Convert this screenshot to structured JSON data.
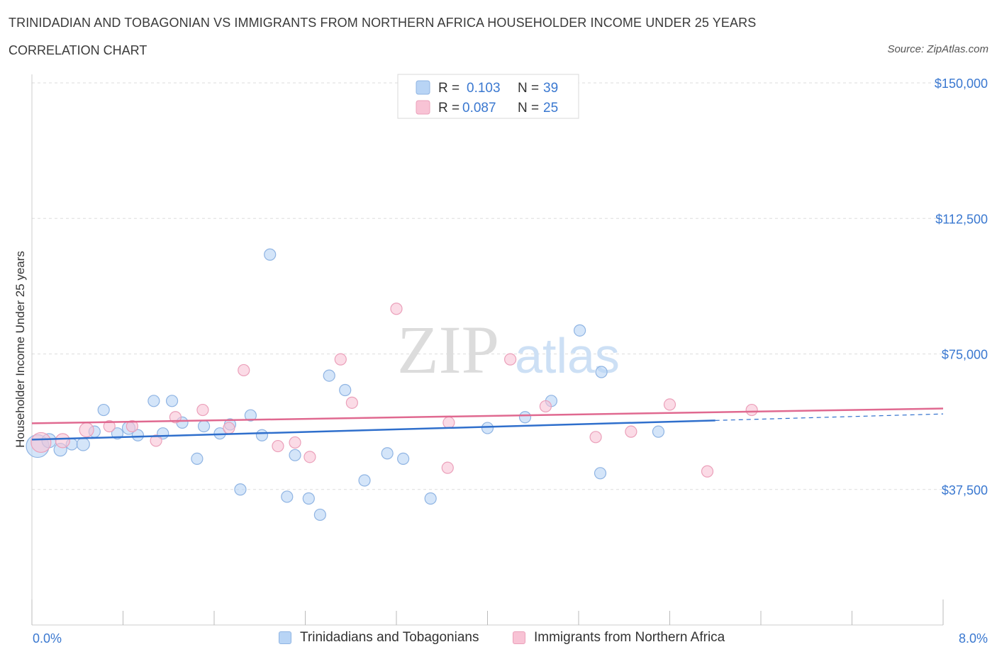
{
  "header": {
    "title": "TRINIDADIAN AND TOBAGONIAN VS IMMIGRANTS FROM NORTHERN AFRICA HOUSEHOLDER INCOME UNDER 25 YEARS",
    "subtitle": "CORRELATION CHART",
    "source": "Source: ZipAtlas.com"
  },
  "watermark": {
    "zip": "ZIP",
    "atlas": "atlas"
  },
  "legend": {
    "r_label": "R =",
    "n_label": "N =",
    "series1": {
      "r": "0.103",
      "n": "39"
    },
    "series2": {
      "r": "0.087",
      "n": "25"
    }
  },
  "colors": {
    "blue_fill": "#b8d4f5",
    "blue_stroke": "#8fb4e3",
    "blue_line": "#2f6fcc",
    "pink_fill": "#f8c3d5",
    "pink_stroke": "#eba0ba",
    "pink_line": "#e06990",
    "axis_text": "#3a78d0"
  },
  "chart_data": {
    "type": "scatter",
    "title": "TRINIDADIAN AND TOBAGONIAN VS IMMIGRANTS FROM NORTHERN AFRICA HOUSEHOLDER INCOME UNDER 25 YEARS",
    "xlabel": "",
    "ylabel": "Householder Income Under 25 years",
    "xlim": [
      0,
      8
    ],
    "ylim": [
      0,
      150000
    ],
    "x_tick_labels": [
      "0.0%",
      "8.0%"
    ],
    "y_ticks": [
      {
        "value": 150000,
        "label": "$150,000"
      },
      {
        "value": 112500,
        "label": "$112,500"
      },
      {
        "value": 75000,
        "label": "$75,000"
      },
      {
        "value": 37500,
        "label": "$37,500"
      }
    ],
    "series": [
      {
        "name": "Trinidadians and Tobagonians",
        "color": "blue",
        "r": 0.103,
        "n": 39,
        "trend": {
          "x0": 0.0,
          "y0": 51300,
          "x1": 6.0,
          "y1": 56600,
          "dash_x1": 8.0,
          "dash_y1": 58400
        },
        "points": [
          [
            0.05,
            49500,
            16
          ],
          [
            0.15,
            51000,
            10
          ],
          [
            0.25,
            48500,
            9
          ],
          [
            0.35,
            50000,
            8
          ],
          [
            0.45,
            50000,
            9
          ],
          [
            0.55,
            53500,
            8
          ],
          [
            0.63,
            59500,
            8
          ],
          [
            0.75,
            53000,
            8
          ],
          [
            0.85,
            54500,
            9
          ],
          [
            0.93,
            52500,
            8
          ],
          [
            1.07,
            62000,
            8
          ],
          [
            1.15,
            53000,
            8
          ],
          [
            1.23,
            62000,
            8
          ],
          [
            1.32,
            56000,
            8
          ],
          [
            1.45,
            46000,
            8
          ],
          [
            1.51,
            55000,
            8
          ],
          [
            1.65,
            53000,
            8
          ],
          [
            1.74,
            55500,
            8
          ],
          [
            1.83,
            37500,
            8
          ],
          [
            1.92,
            58000,
            8
          ],
          [
            2.02,
            52500,
            8
          ],
          [
            2.09,
            102500,
            8
          ],
          [
            2.24,
            35500,
            8
          ],
          [
            2.31,
            47000,
            8
          ],
          [
            2.43,
            35000,
            8
          ],
          [
            2.53,
            30500,
            8
          ],
          [
            2.61,
            69000,
            8
          ],
          [
            2.75,
            65000,
            8
          ],
          [
            2.92,
            40000,
            8
          ],
          [
            3.12,
            47500,
            8
          ],
          [
            3.26,
            46000,
            8
          ],
          [
            3.5,
            35000,
            8
          ],
          [
            4.0,
            54500,
            8
          ],
          [
            4.33,
            57500,
            8
          ],
          [
            4.56,
            62000,
            8
          ],
          [
            4.81,
            81500,
            8
          ],
          [
            4.99,
            42000,
            8
          ],
          [
            5.0,
            70000,
            8
          ],
          [
            5.5,
            53500,
            8
          ]
        ]
      },
      {
        "name": "Immigrants from Northern Africa",
        "color": "pink",
        "r": 0.087,
        "n": 25,
        "trend": {
          "x0": 0.0,
          "y0": 55800,
          "x1": 8.0,
          "y1": 59900
        },
        "points": [
          [
            0.08,
            50500,
            14
          ],
          [
            0.27,
            51000,
            10
          ],
          [
            0.48,
            54000,
            10
          ],
          [
            0.68,
            55000,
            8
          ],
          [
            0.88,
            55000,
            8
          ],
          [
            1.09,
            51000,
            8
          ],
          [
            1.26,
            57500,
            8
          ],
          [
            1.5,
            59500,
            8
          ],
          [
            1.73,
            54500,
            8
          ],
          [
            1.86,
            70500,
            8
          ],
          [
            2.16,
            49500,
            8
          ],
          [
            2.31,
            50500,
            8
          ],
          [
            2.44,
            46500,
            8
          ],
          [
            2.71,
            73500,
            8
          ],
          [
            2.81,
            61500,
            8
          ],
          [
            3.2,
            87500,
            8
          ],
          [
            3.65,
            43500,
            8
          ],
          [
            3.66,
            56000,
            8
          ],
          [
            4.2,
            73500,
            8
          ],
          [
            4.51,
            60500,
            8
          ],
          [
            4.95,
            52000,
            8
          ],
          [
            5.26,
            53500,
            8
          ],
          [
            5.6,
            61000,
            8
          ],
          [
            5.93,
            42500,
            8
          ],
          [
            6.32,
            59500,
            8
          ]
        ]
      }
    ]
  }
}
